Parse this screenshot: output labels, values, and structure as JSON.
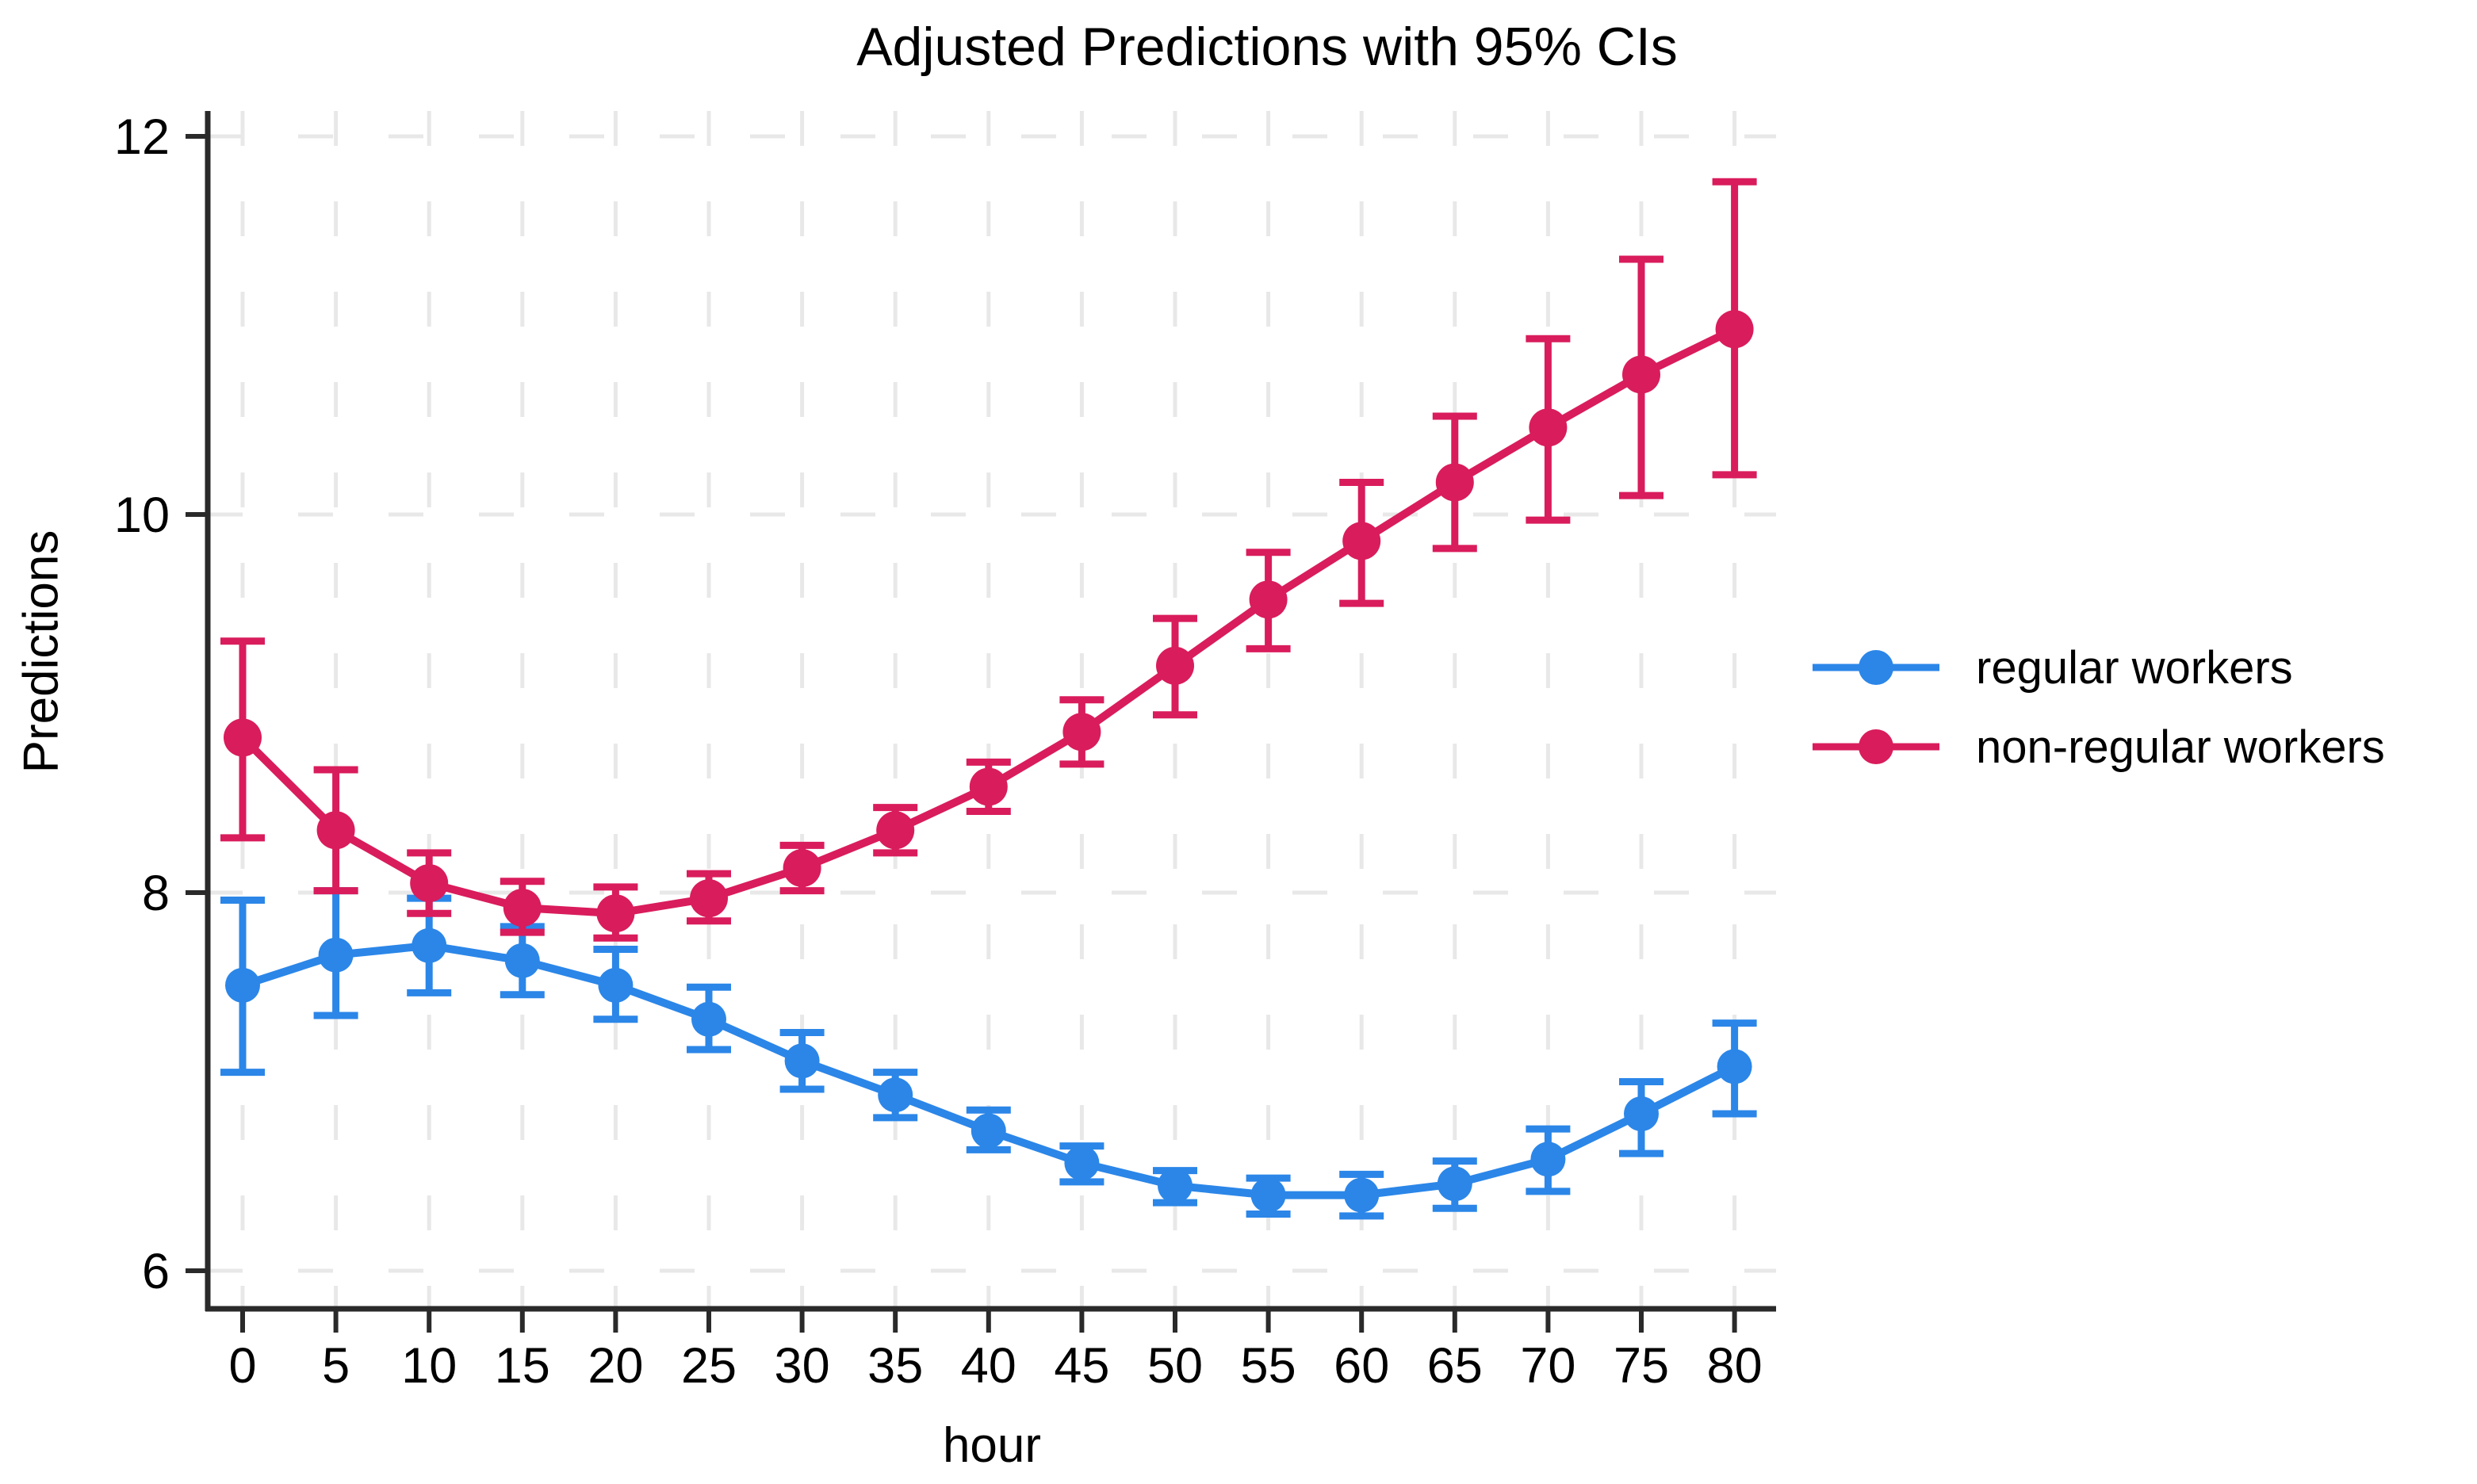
{
  "title": "Adjusted Predictions with 95% CIs",
  "colors": {
    "regular_series": "#2B86E8",
    "non_regular_series": "#D91C5C",
    "grid": "#E8E8E8",
    "axis": "#2A2A2A",
    "text": "#000000",
    "background": "#FFFFFF"
  },
  "chart_data": {
    "type": "line",
    "title": "Adjusted Predictions with 95% CIs",
    "xlabel": "hour",
    "ylabel": "Predictions",
    "x": [
      0,
      5,
      10,
      15,
      20,
      25,
      30,
      35,
      40,
      45,
      50,
      55,
      60,
      65,
      70,
      75,
      80
    ],
    "xtick_labels": [
      "0",
      "5",
      "10",
      "15",
      "20",
      "25",
      "30",
      "35",
      "40",
      "45",
      "50",
      "55",
      "60",
      "65",
      "70",
      "75",
      "80"
    ],
    "yticks": [
      6,
      8,
      10,
      12
    ],
    "ytick_labels": [
      "6",
      "8",
      "10",
      "12"
    ],
    "ylim": [
      5.8,
      12.12
    ],
    "grid": "dashed",
    "legend_position": "right-outside",
    "ci_level": "95%",
    "error_bars": true,
    "series": [
      {
        "name": "regular workers",
        "color": "#2B86E8",
        "values": [
          7.51,
          7.67,
          7.72,
          7.64,
          7.51,
          7.33,
          7.11,
          6.93,
          6.74,
          6.57,
          6.45,
          6.4,
          6.4,
          6.46,
          6.59,
          6.83,
          7.08
        ],
        "ci_low": [
          7.05,
          7.35,
          7.47,
          7.46,
          7.33,
          7.17,
          6.96,
          6.81,
          6.64,
          6.47,
          6.36,
          6.3,
          6.29,
          6.33,
          6.42,
          6.62,
          6.83
        ],
        "ci_high": [
          7.96,
          8.01,
          7.97,
          7.82,
          7.7,
          7.5,
          7.26,
          7.05,
          6.85,
          6.66,
          6.53,
          6.49,
          6.51,
          6.58,
          6.75,
          7.0,
          7.31
        ]
      },
      {
        "name": "non-regular workers",
        "color": "#D91C5C",
        "values": [
          8.82,
          8.33,
          8.05,
          7.92,
          7.89,
          7.97,
          8.13,
          8.33,
          8.56,
          8.85,
          9.2,
          9.55,
          9.86,
          10.17,
          10.46,
          10.74,
          10.98
        ],
        "ci_low": [
          8.29,
          8.01,
          7.89,
          7.79,
          7.76,
          7.85,
          8.01,
          8.21,
          8.43,
          8.68,
          8.94,
          9.29,
          9.53,
          9.82,
          9.97,
          10.1,
          10.21
        ],
        "ci_high": [
          9.33,
          8.65,
          8.21,
          8.06,
          8.03,
          8.1,
          8.25,
          8.45,
          8.69,
          9.02,
          9.45,
          9.8,
          10.17,
          10.52,
          10.93,
          11.35,
          11.76
        ]
      }
    ]
  }
}
